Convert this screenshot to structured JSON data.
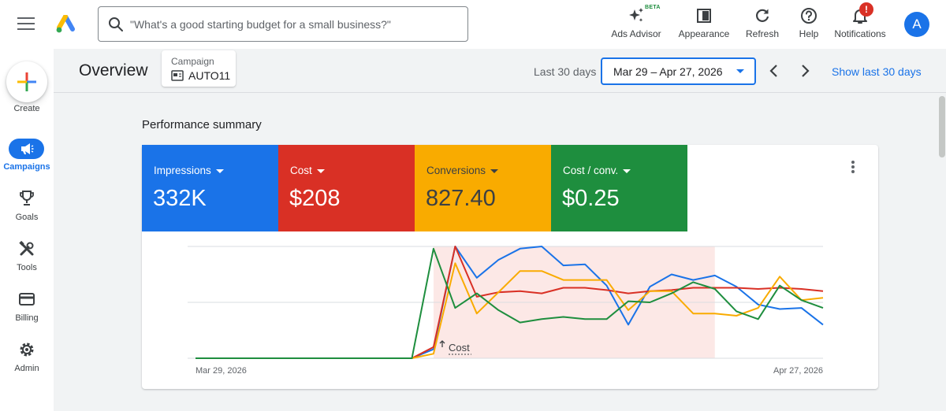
{
  "topbar": {
    "search_placeholder": "\"What's a good starting budget for a small business?\"",
    "tools": [
      {
        "label": "Ads Advisor",
        "icon": "sparkle-icon",
        "badge": "BETA"
      },
      {
        "label": "Appearance",
        "icon": "appearance-icon"
      },
      {
        "label": "Refresh",
        "icon": "refresh-icon"
      },
      {
        "label": "Help",
        "icon": "help-icon"
      },
      {
        "label": "Notifications",
        "icon": "bell-icon",
        "alert": "!"
      }
    ],
    "avatar_initial": "A"
  },
  "nav": {
    "create_label": "Create",
    "items": [
      {
        "label": "Campaigns",
        "icon": "megaphone-icon",
        "active": true
      },
      {
        "label": "Goals",
        "icon": "trophy-icon"
      },
      {
        "label": "Tools",
        "icon": "tools-icon"
      },
      {
        "label": "Billing",
        "icon": "credit-card-icon"
      },
      {
        "label": "Admin",
        "icon": "gear-icon"
      }
    ]
  },
  "header": {
    "title": "Overview",
    "campaign_label": "Campaign",
    "campaign_value": "AUTO11",
    "range_label": "Last 30 days",
    "date_range": "Mar 29 – Apr 27, 2026",
    "show_link": "Show last 30 days"
  },
  "summary": {
    "title": "Performance summary",
    "metrics": [
      {
        "label": "Impressions",
        "value": "332K",
        "color": "#1a73e8"
      },
      {
        "label": "Cost",
        "value": "$208",
        "color": "#d93025"
      },
      {
        "label": "Conversions",
        "value": "827.40",
        "color": "#f9ab00"
      },
      {
        "label": "Cost / conv.",
        "value": "$0.25",
        "color": "#1e8e3e"
      }
    ]
  },
  "chart_data": {
    "type": "line",
    "x_start_label": "Mar 29, 2026",
    "x_end_label": "Apr 27, 2026",
    "annotation": "Cost",
    "highlight_range": [
      11,
      24
    ],
    "highlight_color": "#fce8e6",
    "ylim": [
      0,
      100
    ],
    "series": [
      {
        "color": "#1a73e8",
        "values": [
          0,
          0,
          0,
          0,
          0,
          0,
          0,
          0,
          0,
          0,
          0,
          8,
          100,
          72,
          88,
          98,
          100,
          83,
          84,
          65,
          30,
          64,
          75,
          70,
          74,
          64,
          48,
          44,
          45,
          30
        ]
      },
      {
        "color": "#d93025",
        "values": [
          0,
          0,
          0,
          0,
          0,
          0,
          0,
          0,
          0,
          0,
          0,
          10,
          100,
          55,
          59,
          60,
          58,
          63,
          63,
          61,
          58,
          60,
          61,
          63,
          63,
          63,
          62,
          63,
          62,
          60
        ]
      },
      {
        "color": "#f9ab00",
        "values": [
          0,
          0,
          0,
          0,
          0,
          0,
          0,
          0,
          0,
          0,
          0,
          4,
          85,
          40,
          59,
          78,
          78,
          70,
          70,
          70,
          43,
          60,
          60,
          40,
          40,
          38,
          45,
          73,
          52,
          54
        ]
      },
      {
        "color": "#1e8e3e",
        "values": [
          0,
          0,
          0,
          0,
          0,
          0,
          0,
          0,
          0,
          0,
          0,
          98,
          45,
          58,
          43,
          32,
          35,
          37,
          35,
          35,
          51,
          50,
          58,
          68,
          62,
          42,
          35,
          65,
          52,
          45
        ]
      }
    ]
  }
}
